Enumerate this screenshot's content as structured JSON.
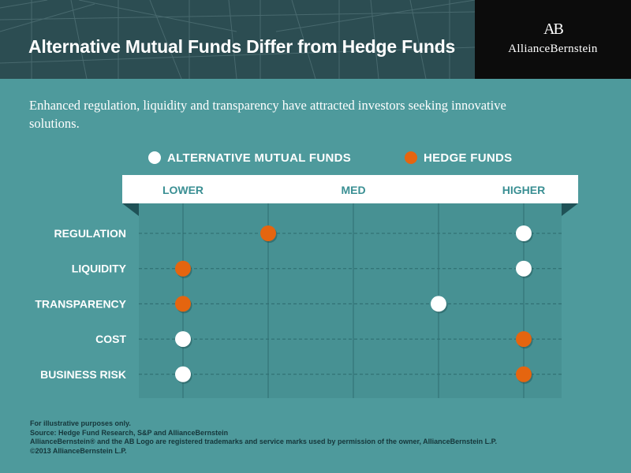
{
  "header": {
    "title": "Alternative Mutual Funds Differ from Hedge Funds",
    "logo_mark": "AB",
    "logo_text": "AllianceBernstein"
  },
  "subtitle": "Enhanced regulation, liquidity and transparency have attracted investors seeking innovative solutions.",
  "colors": {
    "background": "#4e9a9c",
    "header": "#2c4d52",
    "alternative_mutual_funds": "#ffffff",
    "hedge_funds": "#e5650f"
  },
  "chart_data": {
    "type": "scatter",
    "x_scale_labels": [
      "LOWER",
      "MED",
      "HIGHER"
    ],
    "x_positions": [
      0,
      0.5,
      1
    ],
    "categories": [
      "REGULATION",
      "LIQUIDITY",
      "TRANSPARENCY",
      "COST",
      "BUSINESS RISK"
    ],
    "series": [
      {
        "name": "ALTERNATIVE MUTUAL FUNDS",
        "color": "#ffffff",
        "values": [
          1.0,
          1.0,
          0.75,
          0.0,
          0.0
        ]
      },
      {
        "name": "HEDGE FUNDS",
        "color": "#e5650f",
        "values": [
          0.25,
          0.0,
          0.0,
          1.0,
          1.0
        ]
      }
    ],
    "grid": true,
    "legend": "top"
  },
  "footer": {
    "lines": [
      "For illustrative purposes only.",
      "Source: Hedge Fund Research, S&P and AllianceBernstein",
      "AllianceBernstein® and the AB Logo are registered trademarks and service marks used by permission of the owner, AllianceBernstein L.P.",
      "©2013 AllianceBernstein L.P."
    ]
  }
}
